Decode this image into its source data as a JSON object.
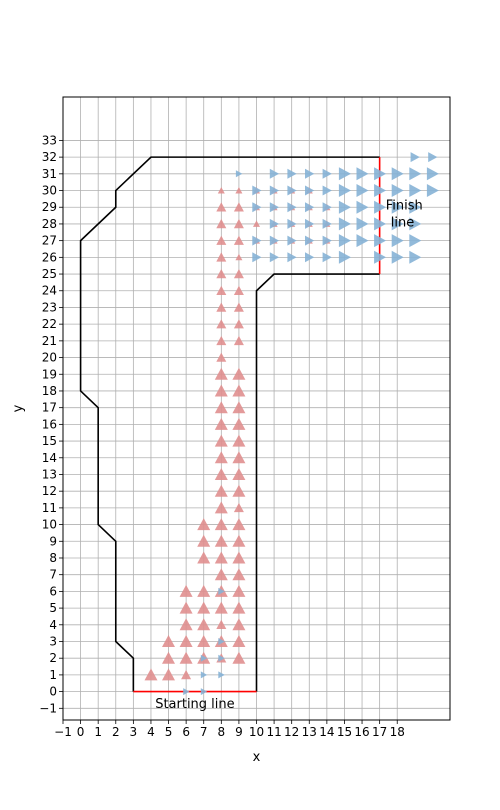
{
  "chart_data": {
    "type": "scatter",
    "xlabel": "x",
    "ylabel": "y",
    "xlim": [
      -1,
      21
    ],
    "ylim": [
      -1.7,
      35.6
    ],
    "x_ticks": [
      -1,
      0,
      1,
      2,
      3,
      4,
      5,
      6,
      7,
      8,
      9,
      10,
      11,
      12,
      13,
      14,
      15,
      16,
      17,
      18
    ],
    "y_ticks": [
      -1,
      0,
      1,
      2,
      3,
      4,
      5,
      6,
      7,
      8,
      9,
      10,
      11,
      12,
      13,
      14,
      15,
      16,
      17,
      18,
      19,
      20,
      21,
      22,
      23,
      24,
      25,
      26,
      27,
      28,
      29,
      30,
      31,
      32,
      33
    ],
    "grid": true,
    "track_boundary": {
      "color": "#000000",
      "outer": [
        [
          3,
          0
        ],
        [
          3,
          2
        ],
        [
          2,
          3
        ],
        [
          2,
          9
        ],
        [
          1,
          10
        ],
        [
          1,
          17
        ],
        [
          0,
          18
        ],
        [
          0,
          27
        ],
        [
          2,
          29
        ],
        [
          2,
          30
        ],
        [
          4,
          32
        ],
        [
          17,
          32
        ]
      ],
      "inner": [
        [
          10,
          0
        ],
        [
          10,
          24
        ],
        [
          11,
          25
        ],
        [
          17,
          25
        ]
      ]
    },
    "start_line": {
      "color": "#ff0000",
      "points": [
        [
          3,
          0
        ],
        [
          10,
          0
        ]
      ]
    },
    "finish_line": {
      "color": "#ff0000",
      "points": [
        [
          17,
          25
        ],
        [
          17,
          32
        ]
      ]
    },
    "annotations": [
      {
        "text": "Starting line",
        "x": 6.5,
        "y": -0.75
      },
      {
        "text": "Finish",
        "x": 18.4,
        "y": 29.1
      },
      {
        "text": "line",
        "x": 18.3,
        "y": 28.1
      }
    ],
    "series": [
      {
        "marker": "triangle-up",
        "color": "#e08f8f",
        "points": [
          [
            4,
            1,
            2
          ],
          [
            5,
            1,
            2
          ],
          [
            5,
            2,
            2
          ],
          [
            5,
            3,
            2
          ],
          [
            6,
            1,
            1
          ],
          [
            6,
            2,
            2
          ],
          [
            6,
            3,
            2
          ],
          [
            6,
            4,
            2
          ],
          [
            6,
            5,
            2
          ],
          [
            6,
            6,
            2
          ],
          [
            7,
            2,
            2
          ],
          [
            7,
            3,
            2
          ],
          [
            7,
            4,
            2
          ],
          [
            7,
            5,
            2
          ],
          [
            7,
            6,
            2
          ],
          [
            7,
            8,
            2
          ],
          [
            7,
            9,
            2
          ],
          [
            7,
            10,
            2
          ],
          [
            8,
            2,
            1
          ],
          [
            8,
            3,
            2
          ],
          [
            8,
            4,
            1
          ],
          [
            8,
            5,
            2
          ],
          [
            8,
            6,
            2
          ],
          [
            8,
            7,
            2
          ],
          [
            8,
            8,
            2
          ],
          [
            8,
            9,
            2
          ],
          [
            8,
            10,
            2
          ],
          [
            8,
            11,
            2
          ],
          [
            8,
            12,
            2
          ],
          [
            8,
            13,
            2
          ],
          [
            8,
            14,
            2
          ],
          [
            8,
            15,
            2
          ],
          [
            8,
            16,
            2
          ],
          [
            8,
            17,
            2
          ],
          [
            8,
            18,
            2
          ],
          [
            8,
            19,
            2
          ],
          [
            8,
            20,
            1
          ],
          [
            8,
            21,
            1
          ],
          [
            8,
            22,
            1
          ],
          [
            8,
            23,
            1
          ],
          [
            8,
            24,
            1
          ],
          [
            8,
            25,
            1
          ],
          [
            8,
            26,
            1
          ],
          [
            8,
            27,
            1
          ],
          [
            8,
            28,
            1
          ],
          [
            8,
            29,
            1
          ],
          [
            8,
            30,
            0
          ],
          [
            9,
            2,
            2
          ],
          [
            9,
            3,
            2
          ],
          [
            9,
            4,
            2
          ],
          [
            9,
            5,
            2
          ],
          [
            9,
            6,
            2
          ],
          [
            9,
            7,
            2
          ],
          [
            9,
            8,
            2
          ],
          [
            9,
            9,
            2
          ],
          [
            9,
            10,
            2
          ],
          [
            9,
            11,
            1
          ],
          [
            9,
            12,
            2
          ],
          [
            9,
            13,
            2
          ],
          [
            9,
            14,
            2
          ],
          [
            9,
            15,
            2
          ],
          [
            9,
            16,
            2
          ],
          [
            9,
            17,
            2
          ],
          [
            9,
            18,
            2
          ],
          [
            9,
            19,
            2
          ],
          [
            9,
            21,
            1
          ],
          [
            9,
            22,
            1
          ],
          [
            9,
            23,
            1
          ],
          [
            9,
            24,
            1
          ],
          [
            9,
            25,
            1
          ],
          [
            9,
            26,
            0
          ],
          [
            9,
            27,
            1
          ],
          [
            9,
            28,
            1
          ],
          [
            9,
            29,
            1
          ],
          [
            9,
            30,
            0
          ],
          [
            10,
            27,
            0
          ],
          [
            10,
            28,
            0
          ],
          [
            10,
            29,
            0
          ],
          [
            10,
            30,
            0
          ],
          [
            11,
            27,
            0
          ],
          [
            11,
            28,
            0
          ],
          [
            11,
            29,
            0
          ],
          [
            11,
            30,
            0
          ],
          [
            12,
            27,
            0
          ],
          [
            12,
            28,
            0
          ],
          [
            12,
            29,
            0
          ],
          [
            12,
            30,
            0
          ],
          [
            13,
            27,
            0
          ],
          [
            13,
            28,
            0
          ],
          [
            13,
            29,
            0
          ],
          [
            13,
            30,
            0
          ],
          [
            14,
            27,
            0
          ],
          [
            14,
            28,
            0
          ],
          [
            14,
            29,
            0
          ]
        ]
      },
      {
        "marker": "triangle-right",
        "color": "#86b2d6",
        "points": [
          [
            6,
            0,
            0
          ],
          [
            7,
            0,
            0
          ],
          [
            7,
            1,
            0
          ],
          [
            8,
            1,
            0
          ],
          [
            8,
            2,
            0
          ],
          [
            7,
            2,
            0
          ],
          [
            8,
            3,
            0
          ],
          [
            8,
            6,
            0
          ],
          [
            9,
            31,
            0
          ],
          [
            10,
            26,
            1
          ],
          [
            10,
            27,
            1
          ],
          [
            10,
            29,
            1
          ],
          [
            10,
            30,
            1
          ],
          [
            11,
            26,
            1
          ],
          [
            11,
            27,
            1
          ],
          [
            11,
            28,
            1
          ],
          [
            11,
            29,
            1
          ],
          [
            11,
            30,
            1
          ],
          [
            11,
            31,
            1
          ],
          [
            12,
            26,
            1
          ],
          [
            12,
            27,
            1
          ],
          [
            12,
            28,
            1
          ],
          [
            12,
            29,
            1
          ],
          [
            12,
            30,
            1
          ],
          [
            12,
            31,
            1
          ],
          [
            13,
            26,
            1
          ],
          [
            13,
            27,
            1
          ],
          [
            13,
            28,
            1
          ],
          [
            13,
            29,
            1
          ],
          [
            13,
            30,
            1
          ],
          [
            13,
            31,
            1
          ],
          [
            14,
            26,
            1
          ],
          [
            14,
            27,
            1
          ],
          [
            14,
            28,
            1
          ],
          [
            14,
            29,
            1
          ],
          [
            14,
            30,
            1
          ],
          [
            14,
            31,
            1
          ],
          [
            15,
            26,
            2
          ],
          [
            15,
            27,
            2
          ],
          [
            15,
            28,
            2
          ],
          [
            15,
            29,
            2
          ],
          [
            15,
            30,
            2
          ],
          [
            15,
            31,
            2
          ],
          [
            16,
            27,
            2
          ],
          [
            16,
            28,
            2
          ],
          [
            16,
            29,
            2
          ],
          [
            16,
            30,
            2
          ],
          [
            16,
            31,
            2
          ],
          [
            17,
            26,
            2
          ],
          [
            17,
            27,
            2
          ],
          [
            17,
            28,
            2
          ],
          [
            17,
            29,
            2
          ],
          [
            17,
            30,
            2
          ],
          [
            17,
            31,
            2
          ],
          [
            18,
            26,
            2
          ],
          [
            18,
            27,
            2
          ],
          [
            18,
            28,
            2
          ],
          [
            18,
            29,
            2
          ],
          [
            18,
            30,
            2
          ],
          [
            18,
            31,
            2
          ],
          [
            19,
            26,
            2
          ],
          [
            19,
            27,
            2
          ],
          [
            19,
            28,
            2
          ],
          [
            19,
            29,
            2
          ],
          [
            19,
            30,
            2
          ],
          [
            19,
            31,
            2
          ],
          [
            19,
            32,
            1
          ],
          [
            20,
            30,
            2
          ],
          [
            20,
            31,
            2
          ],
          [
            20,
            32,
            1
          ]
        ]
      }
    ]
  }
}
